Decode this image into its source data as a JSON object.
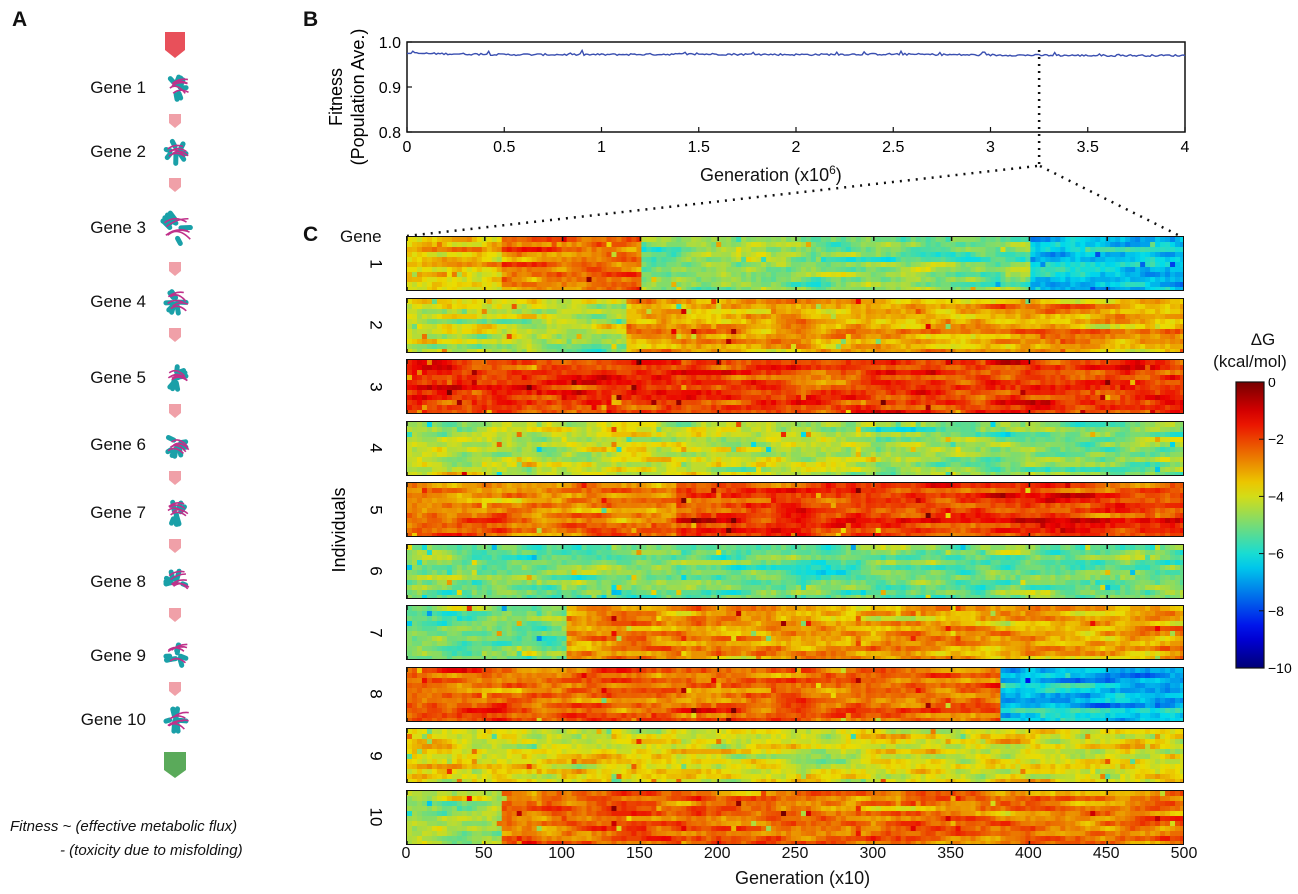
{
  "panels": {
    "a": "A",
    "b": "B",
    "c": "C"
  },
  "panel_a": {
    "genes": [
      "Gene 1",
      "Gene 2",
      "Gene 3",
      "Gene 4",
      "Gene 5",
      "Gene 6",
      "Gene 7",
      "Gene 8",
      "Gene 9",
      "Gene 10"
    ],
    "note_line1": "Fitness ~ (effective metabolic flux)",
    "note_line2": "- (toxicity due to misfolding)",
    "colors": {
      "arrow_top": "#e8505a",
      "arrow_mid": "#f0a0a8",
      "arrow_end": "#5aaa5a",
      "helix": "#1aa0a8",
      "sheet": "#c0308a"
    }
  },
  "panel_b": {
    "ylabel_line1": "Fitness",
    "ylabel_line2": "(Population Ave.)",
    "xlabel": "Generation (x10",
    "xlabel_exp": "6",
    "xlabel_close": ")",
    "yticks": [
      "1.0",
      "0.9",
      "0.8"
    ],
    "xticks": [
      "0",
      "0.5",
      "1",
      "1.5",
      "2",
      "2.5",
      "3",
      "3.5",
      "4"
    ],
    "line_color": "#3a4fb0"
  },
  "panel_c": {
    "gene_header": "Gene",
    "ylabel": "Individuals",
    "xlabel": "Generation (x10)",
    "rows": [
      "1",
      "2",
      "3",
      "4",
      "5",
      "6",
      "7",
      "8",
      "9",
      "10"
    ],
    "xticks": [
      "0",
      "50",
      "100",
      "150",
      "200",
      "250",
      "300",
      "350",
      "400",
      "450",
      "500"
    ],
    "colorbar_title_line1": "ΔG",
    "colorbar_title_line2": "(kcal/mol)",
    "colorbar_ticks": [
      "0",
      "−2",
      "−4",
      "−6",
      "−8",
      "−10"
    ]
  },
  "chart_data": [
    {
      "type": "line",
      "xlabel": "Generation (x10^6)",
      "ylabel": "Fitness (Population Ave.)",
      "xlim": [
        0,
        4
      ],
      "ylim": [
        0.8,
        1.0
      ],
      "series": [
        {
          "values_summary": "roughly constant",
          "x": [
            0,
            0.5,
            1,
            1.5,
            2,
            2.5,
            3,
            3.5,
            4
          ],
          "y": [
            0.975,
            0.972,
            0.972,
            0.973,
            0.972,
            0.973,
            0.971,
            0.97,
            0.97
          ]
        }
      ],
      "marker_generation": 3.25
    },
    {
      "type": "heatmap",
      "xlabel": "Generation (x10)",
      "ylabel": "Individuals",
      "xlim": [
        0,
        500
      ],
      "color_scale": "ΔG (kcal/mol)",
      "zlim": [
        -10,
        0
      ],
      "rows_dominant_dG": [
        {
          "gene": "1",
          "segments": [
            [
              0,
              60,
              -3.5
            ],
            [
              60,
              150,
              -2.5
            ],
            [
              150,
              400,
              -5
            ],
            [
              400,
              500,
              -6.5
            ]
          ]
        },
        {
          "gene": "2",
          "segments": [
            [
              0,
              140,
              -4.2
            ],
            [
              140,
              500,
              -3
            ]
          ]
        },
        {
          "gene": "3",
          "segments": [
            [
              0,
              500,
              -1.8
            ]
          ]
        },
        {
          "gene": "4",
          "segments": [
            [
              0,
              300,
              -4.3
            ],
            [
              300,
              500,
              -4.8
            ]
          ]
        },
        {
          "gene": "5",
          "segments": [
            [
              0,
              170,
              -2.6
            ],
            [
              170,
              500,
              -1.8
            ]
          ]
        },
        {
          "gene": "6",
          "segments": [
            [
              0,
              500,
              -5
            ]
          ]
        },
        {
          "gene": "7",
          "segments": [
            [
              0,
              100,
              -5
            ],
            [
              100,
              500,
              -3
            ]
          ]
        },
        {
          "gene": "8",
          "segments": [
            [
              0,
              380,
              -2.3
            ],
            [
              380,
              500,
              -6.5
            ]
          ]
        },
        {
          "gene": "9",
          "segments": [
            [
              0,
              500,
              -3.8
            ]
          ]
        },
        {
          "gene": "10",
          "segments": [
            [
              0,
              60,
              -4.5
            ],
            [
              60,
              500,
              -2.5
            ]
          ]
        }
      ]
    }
  ]
}
